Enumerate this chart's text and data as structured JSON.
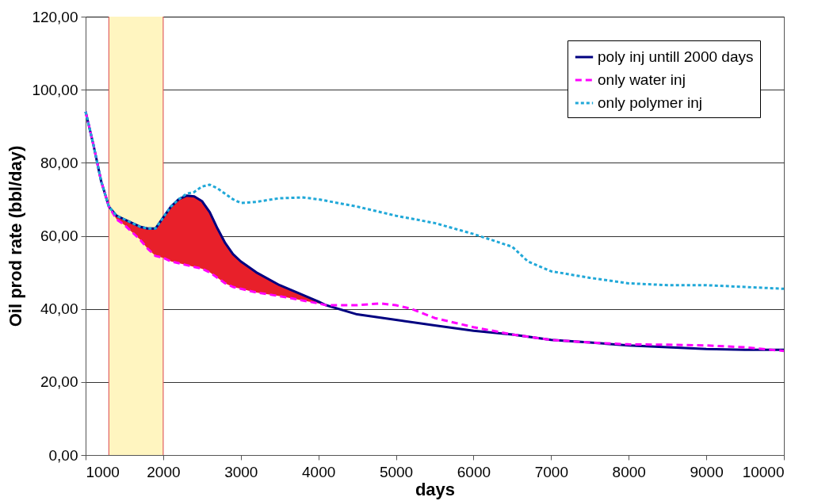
{
  "chart_data": {
    "type": "line",
    "xlabel": "days",
    "ylabel": "Oil prod rate (bbl/day)",
    "xlim": [
      1000,
      10000
    ],
    "xticks": [
      1000,
      2000,
      3000,
      4000,
      5000,
      6000,
      7000,
      8000,
      9000,
      10000
    ],
    "ylim": [
      0,
      120
    ],
    "yticks": [
      {
        "value": 0,
        "label": "0,00"
      },
      {
        "value": 20,
        "label": "20,00"
      },
      {
        "value": 40,
        "label": "40,00"
      },
      {
        "value": 60,
        "label": "60,00"
      },
      {
        "value": 80,
        "label": "80,00"
      },
      {
        "value": 100,
        "label": "100,00"
      },
      {
        "value": 120,
        "label": "120,00"
      }
    ],
    "grid": "y",
    "legend": "top right",
    "bands": [
      {
        "axis": "x",
        "from": 1300,
        "to": 2000,
        "color": "#fff5c0"
      }
    ],
    "ref_lines": [
      {
        "axis": "x",
        "value": 1300,
        "color": "#e06060"
      },
      {
        "axis": "x",
        "value": 2000,
        "color": "#e06060"
      }
    ],
    "series": [
      {
        "name": "poly inj untill 2000 days",
        "color": "#000080",
        "line_style": "solid",
        "lower": [
          null,
          null,
          null,
          68,
          64.5,
          63,
          61,
          59,
          56.5,
          54.5,
          54,
          53,
          52.5,
          52,
          51.5,
          51,
          50,
          48.5,
          47,
          46,
          45.5,
          44.5,
          43.5,
          41.5,
          41,
          null,
          null,
          null,
          null,
          null,
          null,
          null,
          null,
          null,
          null,
          null,
          null
        ],
        "upper": [
          null,
          null,
          null,
          68,
          65.5,
          64.5,
          63.5,
          62.5,
          62,
          62,
          65,
          68,
          70,
          71,
          70.8,
          69.5,
          66.5,
          62,
          58,
          55,
          53,
          50,
          46.5,
          42,
          41,
          null,
          null,
          null,
          null,
          null,
          null,
          null,
          null,
          null,
          null,
          null,
          null
        ],
        "x": [
          1000,
          1100,
          1200,
          1300,
          1400,
          1500,
          1600,
          1700,
          1800,
          1900,
          2000,
          2100,
          2200,
          2300,
          2400,
          2500,
          2600,
          2700,
          2800,
          2900,
          3000,
          3200,
          3500,
          4000,
          4100,
          4500,
          5000,
          5500,
          6000,
          6500,
          7000,
          7500,
          8000,
          8500,
          9000,
          9500,
          10000
        ],
        "values": [
          94,
          85,
          75,
          68,
          65.5,
          64.5,
          63.5,
          62.5,
          62,
          62,
          65,
          68,
          70,
          71,
          70.8,
          69.5,
          66.5,
          62,
          58,
          55,
          53,
          50,
          46.5,
          42,
          41,
          38.5,
          37,
          35.5,
          34,
          33,
          31.5,
          30.8,
          30,
          29.5,
          29,
          28.8,
          28.8
        ]
      },
      {
        "name": "only water inj",
        "color": "#ff00ff",
        "line_style": "dashed",
        "x": [
          1000,
          1100,
          1200,
          1300,
          1400,
          1500,
          1600,
          1700,
          1800,
          1900,
          2000,
          2100,
          2200,
          2300,
          2400,
          2500,
          2600,
          2700,
          2800,
          2900,
          3000,
          3200,
          3500,
          4000,
          4100,
          4500,
          4800,
          5000,
          5200,
          5500,
          6000,
          6500,
          7000,
          7500,
          8000,
          8500,
          9000,
          9500,
          10000
        ],
        "values": [
          94,
          85,
          75,
          68,
          64.5,
          63,
          61,
          59,
          56.5,
          54.5,
          54,
          53,
          52.5,
          52,
          51.5,
          51,
          50,
          48.5,
          47,
          46,
          45.5,
          44.5,
          43.5,
          41.5,
          41,
          41,
          41.5,
          41,
          40,
          37.5,
          35,
          33,
          31.5,
          30.8,
          30.3,
          30.2,
          30,
          29.5,
          28.5
        ]
      },
      {
        "name": "only polymer inj",
        "color": "#20a8d8",
        "line_style": "dotted",
        "x": [
          1000,
          1100,
          1200,
          1300,
          1400,
          1500,
          1600,
          1700,
          1800,
          1900,
          2000,
          2100,
          2200,
          2300,
          2400,
          2500,
          2600,
          2700,
          2800,
          2900,
          3000,
          3200,
          3500,
          3800,
          4000,
          4500,
          5000,
          5500,
          6000,
          6500,
          6700,
          7000,
          7500,
          8000,
          8500,
          9000,
          9500,
          10000
        ],
        "values": [
          94,
          85,
          75,
          68,
          65.5,
          64.5,
          63.5,
          62.5,
          62,
          62,
          65,
          68,
          70,
          71.5,
          72,
          73.5,
          74,
          73,
          71.5,
          70,
          69,
          69.3,
          70.3,
          70.5,
          70,
          68,
          65.5,
          63.5,
          60.5,
          57,
          53,
          50.3,
          48.5,
          47,
          46.5,
          46.5,
          46,
          45.5
        ]
      }
    ]
  }
}
